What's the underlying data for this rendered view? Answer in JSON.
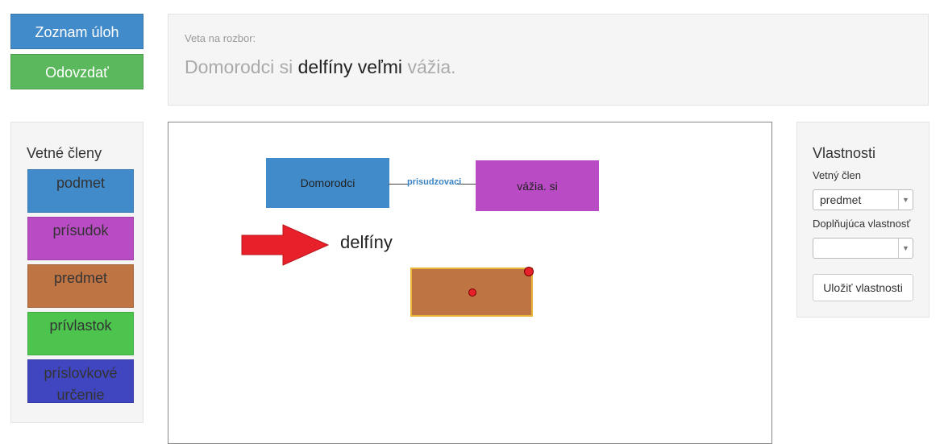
{
  "top_buttons": {
    "tasks_label": "Zoznam úloh",
    "submit_label": "Odovzdať"
  },
  "sentence": {
    "label": "Veta na rozbor:",
    "words": [
      {
        "text": "Domorodci",
        "style": "dim"
      },
      {
        "text": "si",
        "style": "dim"
      },
      {
        "text": "delfíny",
        "style": "dark"
      },
      {
        "text": "veľmi",
        "style": "dark"
      },
      {
        "text": "vážia.",
        "style": "dim"
      }
    ]
  },
  "members": {
    "title": "Vetné členy",
    "items": [
      {
        "label": "podmet",
        "color": "#428bca"
      },
      {
        "label": "prísudok",
        "color": "#b94bc4"
      },
      {
        "label": "predmet",
        "color": "#bf7444"
      },
      {
        "label": "prívlastok",
        "color": "#4cc44e"
      },
      {
        "label": "príslovkové určenie",
        "color": "#4046c0"
      }
    ]
  },
  "canvas": {
    "nodes": [
      {
        "label": "Domorodci",
        "color": "#428bca"
      },
      {
        "label": "vážia. si",
        "color": "#b94bc4"
      },
      {
        "label": "",
        "color": "#bf7444",
        "selected": true
      }
    ],
    "edge_label": "prisudzovaci",
    "current_word": "delfíny",
    "arrow_color": "#e8202a"
  },
  "properties": {
    "title": "Vlastnosti",
    "member_label": "Vetný člen",
    "member_value": "predmet",
    "extra_label": "Doplňujúca vlastnosť",
    "extra_value": "",
    "save_label": "Uložiť vlastnosti"
  }
}
